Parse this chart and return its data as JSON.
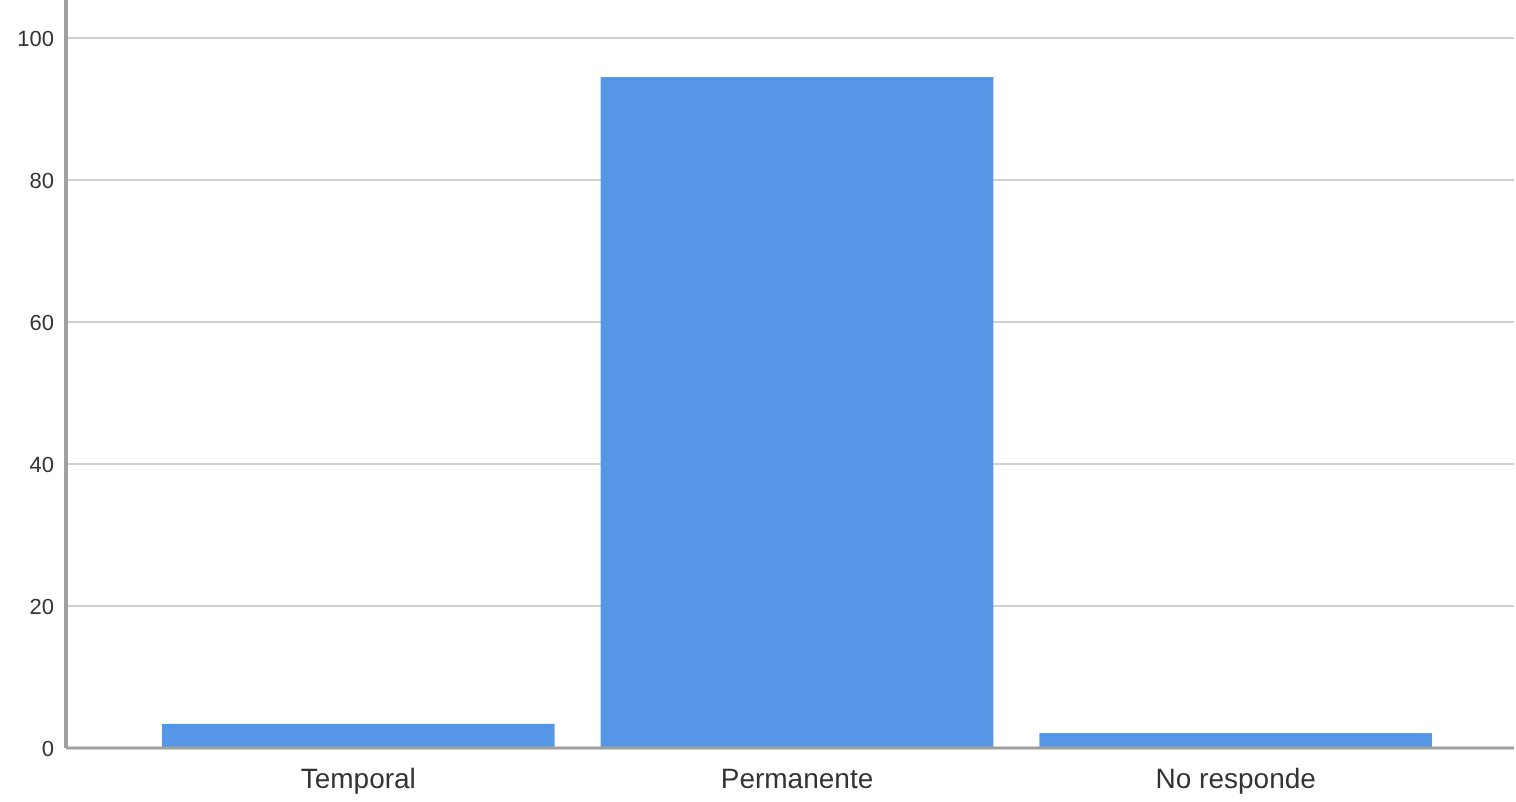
{
  "chart_data": {
    "type": "bar",
    "categories": [
      "Temporal",
      "Permanente",
      "No responde"
    ],
    "values": [
      3.4,
      94.5,
      2.1
    ],
    "color": "#5596e6",
    "ylim": [
      0,
      100
    ],
    "yticks": [
      0,
      20,
      40,
      60,
      80,
      100
    ],
    "grid": "y"
  }
}
